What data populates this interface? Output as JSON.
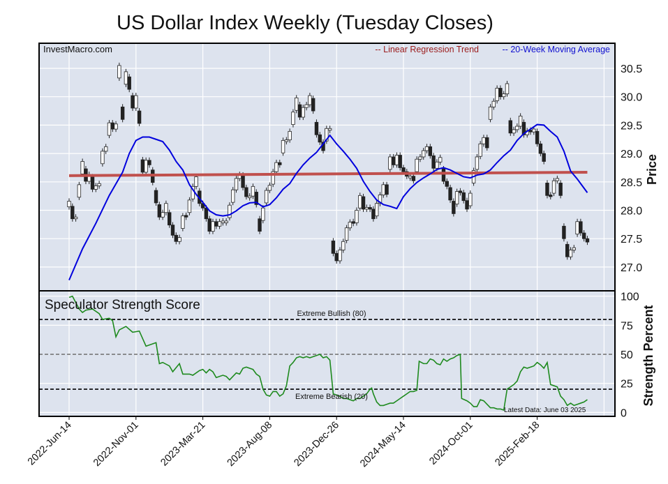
{
  "chart_data": [
    {
      "type": "candlestick",
      "title": "US Dollar Index Weekly (Tuesday Closes)",
      "watermark": "InvestMacro.com",
      "ylabel": "Price",
      "ylim": [
        26.6,
        30.9
      ],
      "yticks": [
        "27.0",
        "27.5",
        "28.0",
        "28.5",
        "29.0",
        "29.5",
        "30.0",
        "30.5"
      ],
      "xticks": [
        {
          "label": "2022-Jun-14",
          "week": 0
        },
        {
          "label": "2022-Nov-01",
          "week": 20
        },
        {
          "label": "2023-Mar-21",
          "week": 40
        },
        {
          "label": "2023-Aug-08",
          "week": 60
        },
        {
          "label": "2023-Dec-26",
          "week": 80
        },
        {
          "label": "2024-May-14",
          "week": 100
        },
        {
          "label": "2024-Oct-01",
          "week": 120
        },
        {
          "label": "2025-Feb-18",
          "week": 140
        }
      ],
      "legend": {
        "regression_label": "-- Linear Regression Trend",
        "ma_label": "-- 20-Week Moving Average",
        "placement": "top-right"
      },
      "colors": {
        "regression": "#c0504d",
        "ma": "#0000dd",
        "up": "#ffffff",
        "down": "#222222",
        "legend_regression": "#9b1c1c",
        "legend_ma": "#1010d0"
      },
      "closes": [
        28.16,
        27.85,
        27.88,
        28.45,
        28.86,
        28.51,
        28.63,
        28.37,
        28.43,
        28.47,
        29.04,
        29.12,
        29.54,
        29.43,
        29.52,
        30.55,
        29.6,
        30.44,
        30.13,
        29.8,
        30.02,
        29.53,
        28.67,
        28.88,
        28.8,
        28.49,
        28.13,
        27.88,
        27.96,
        28.12,
        27.74,
        27.56,
        27.45,
        27.52,
        27.9,
        27.88,
        28.18,
        28.42,
        28.59,
        28.12,
        28.04,
        27.85,
        27.63,
        27.8,
        27.72,
        27.8,
        27.81,
        27.81,
        28.09,
        28.36,
        28.56,
        28.63,
        28.4,
        28.24,
        28.25,
        28.42,
        28.1,
        27.63,
        28.04,
        28.35,
        28.44,
        28.68,
        28.84,
        28.8,
        29.23,
        29.24,
        29.39,
        29.73,
        29.98,
        29.64,
        29.81,
        29.86,
        30.02,
        29.75,
        29.33,
        29.2,
        29.05,
        29.44,
        29.44,
        27.24,
        27.11,
        27.3,
        27.45,
        27.69,
        27.79,
        27.77,
        28.0,
        28.26,
        28.02,
        28.05,
        28.02,
        27.85,
        28.12,
        28.27,
        28.45,
        28.28,
        28.94,
        28.8,
        28.97,
        28.75,
        28.68,
        28.6,
        28.6,
        28.52,
        28.9,
        28.94,
        29.05,
        29.12,
        28.96,
        28.74,
        28.85,
        28.93,
        28.51,
        28.42,
        28.18,
        27.94,
        28.33,
        28.31,
        28.17,
        28.02,
        28.3,
        28.7,
        28.94,
        29.17,
        29.28,
        29.1,
        29.82,
        29.92,
        30.15,
        30.0,
        30.05,
        30.23,
        29.36,
        29.42,
        29.48,
        29.66,
        29.33,
        29.4,
        29.38,
        29.43,
        29.17,
        29.0,
        28.86,
        28.26,
        28.24,
        28.52,
        28.56,
        28.26,
        27.5,
        27.18,
        27.3,
        27.34,
        27.8,
        27.6,
        27.5,
        27.44
      ],
      "moving_average": [
        [
          0,
          26.77
        ],
        [
          4,
          27.32
        ],
        [
          8,
          27.77
        ],
        [
          12,
          28.26
        ],
        [
          16,
          28.67
        ],
        [
          18,
          29.0
        ],
        [
          20,
          29.23
        ],
        [
          22,
          29.29
        ],
        [
          24,
          29.29
        ],
        [
          26,
          29.25
        ],
        [
          28,
          29.21
        ],
        [
          30,
          29.06
        ],
        [
          32,
          28.86
        ],
        [
          34,
          28.71
        ],
        [
          36,
          28.45
        ],
        [
          38,
          28.28
        ],
        [
          40,
          28.14
        ],
        [
          42,
          27.99
        ],
        [
          44,
          27.92
        ],
        [
          46,
          27.9
        ],
        [
          48,
          27.92
        ],
        [
          50,
          27.99
        ],
        [
          52,
          28.08
        ],
        [
          54,
          28.13
        ],
        [
          56,
          28.14
        ],
        [
          58,
          28.06
        ],
        [
          60,
          28.1
        ],
        [
          62,
          28.22
        ],
        [
          64,
          28.37
        ],
        [
          66,
          28.47
        ],
        [
          68,
          28.65
        ],
        [
          70,
          28.8
        ],
        [
          72,
          28.92
        ],
        [
          74,
          29.02
        ],
        [
          76,
          29.17
        ],
        [
          78,
          29.32
        ],
        [
          80,
          29.17
        ],
        [
          82,
          29.04
        ],
        [
          84,
          28.9
        ],
        [
          86,
          28.74
        ],
        [
          88,
          28.51
        ],
        [
          90,
          28.33
        ],
        [
          92,
          28.18
        ],
        [
          94,
          28.1
        ],
        [
          96,
          28.07
        ],
        [
          98,
          28.03
        ],
        [
          100,
          28.24
        ],
        [
          102,
          28.38
        ],
        [
          104,
          28.49
        ],
        [
          106,
          28.57
        ],
        [
          108,
          28.64
        ],
        [
          110,
          28.72
        ],
        [
          112,
          28.75
        ],
        [
          114,
          28.71
        ],
        [
          116,
          28.65
        ],
        [
          118,
          28.59
        ],
        [
          120,
          28.57
        ],
        [
          122,
          28.62
        ],
        [
          124,
          28.64
        ],
        [
          126,
          28.71
        ],
        [
          128,
          28.84
        ],
        [
          130,
          28.96
        ],
        [
          132,
          29.06
        ],
        [
          134,
          29.23
        ],
        [
          136,
          29.35
        ],
        [
          138,
          29.43
        ],
        [
          140,
          29.51
        ],
        [
          142,
          29.5
        ],
        [
          144,
          29.39
        ],
        [
          146,
          29.29
        ],
        [
          148,
          29.04
        ],
        [
          150,
          28.69
        ],
        [
          152,
          28.55
        ],
        [
          154,
          28.39
        ],
        [
          155,
          28.31
        ]
      ],
      "regression": [
        [
          0,
          28.61
        ],
        [
          155,
          28.67
        ]
      ]
    },
    {
      "type": "line",
      "title": "Speculator Strength Score",
      "ylabel": "Strength Percent",
      "ylim": [
        0,
        100
      ],
      "yticks": [
        "100",
        "75",
        "50",
        "25",
        "0"
      ],
      "thresholds": [
        {
          "value": 80,
          "label": "Extreme Bullish (80)"
        },
        {
          "value": 50,
          "label": ""
        },
        {
          "value": 20,
          "label": "Extreme Bearish (20)"
        }
      ],
      "annotation": "Latest Data: June 03 2025",
      "color": "#1e8a1e",
      "points": [
        [
          0,
          99
        ],
        [
          1,
          100
        ],
        [
          3,
          89
        ],
        [
          4,
          86
        ],
        [
          5,
          88
        ],
        [
          7,
          89
        ],
        [
          9,
          85
        ],
        [
          10,
          80
        ],
        [
          12,
          81
        ],
        [
          13,
          79
        ],
        [
          14,
          65
        ],
        [
          15,
          71
        ],
        [
          17,
          74
        ],
        [
          19,
          69
        ],
        [
          21,
          70
        ],
        [
          23,
          57
        ],
        [
          25,
          59
        ],
        [
          26,
          60
        ],
        [
          27,
          42
        ],
        [
          28,
          43
        ],
        [
          30,
          40
        ],
        [
          31,
          35
        ],
        [
          33,
          42
        ],
        [
          34,
          33
        ],
        [
          36,
          33
        ],
        [
          37,
          32
        ],
        [
          39,
          36
        ],
        [
          40,
          37
        ],
        [
          41,
          34
        ],
        [
          42,
          37
        ],
        [
          43,
          35
        ],
        [
          44,
          30
        ],
        [
          46,
          32
        ],
        [
          47,
          31
        ],
        [
          48,
          28
        ],
        [
          50,
          34
        ],
        [
          51,
          33
        ],
        [
          52,
          38
        ],
        [
          53,
          39
        ],
        [
          55,
          37
        ],
        [
          56,
          33
        ],
        [
          57,
          31
        ],
        [
          58,
          20
        ],
        [
          59,
          15
        ],
        [
          60,
          14
        ],
        [
          61,
          18
        ],
        [
          62,
          18
        ],
        [
          63,
          14
        ],
        [
          64,
          16
        ],
        [
          65,
          23
        ],
        [
          66,
          40
        ],
        [
          67,
          43
        ],
        [
          68,
          47
        ],
        [
          69,
          48
        ],
        [
          70,
          47
        ],
        [
          71,
          48
        ],
        [
          72,
          47
        ],
        [
          73,
          48
        ],
        [
          74,
          49
        ],
        [
          75,
          50
        ],
        [
          76,
          47
        ],
        [
          77,
          48
        ],
        [
          78,
          45
        ],
        [
          79,
          16
        ],
        [
          80,
          15
        ],
        [
          81,
          14
        ],
        [
          82,
          12
        ],
        [
          83,
          12
        ],
        [
          84,
          11
        ],
        [
          85,
          10
        ],
        [
          86,
          12
        ],
        [
          87,
          12
        ],
        [
          88,
          14
        ],
        [
          89,
          16
        ],
        [
          90,
          20
        ],
        [
          90.5,
          21
        ],
        [
          91,
          16
        ],
        [
          92,
          9
        ],
        [
          93,
          6
        ],
        [
          94,
          6
        ],
        [
          95,
          7
        ],
        [
          96,
          8
        ],
        [
          97,
          8
        ],
        [
          98,
          10
        ],
        [
          99,
          12
        ],
        [
          100,
          14
        ],
        [
          101,
          16
        ],
        [
          102,
          18
        ],
        [
          103,
          18
        ],
        [
          104,
          19
        ],
        [
          104.7,
          44
        ],
        [
          106,
          42
        ],
        [
          107,
          42
        ],
        [
          108,
          46
        ],
        [
          109,
          45
        ],
        [
          110,
          42
        ],
        [
          111,
          41
        ],
        [
          112,
          46
        ],
        [
          113,
          44
        ],
        [
          114,
          46
        ],
        [
          115,
          47
        ],
        [
          116,
          49
        ],
        [
          117,
          50
        ],
        [
          117.4,
          12
        ],
        [
          119,
          10
        ],
        [
          120,
          8
        ],
        [
          121,
          5
        ],
        [
          122,
          5
        ],
        [
          123,
          11
        ],
        [
          124,
          10
        ],
        [
          125,
          7
        ],
        [
          126,
          4
        ],
        [
          127,
          4
        ],
        [
          128,
          3
        ],
        [
          129,
          3
        ],
        [
          130,
          2
        ],
        [
          131,
          20
        ],
        [
          132,
          22
        ],
        [
          133,
          24
        ],
        [
          134,
          27
        ],
        [
          135,
          35
        ],
        [
          136,
          39
        ],
        [
          137,
          38
        ],
        [
          138,
          39
        ],
        [
          139,
          40
        ],
        [
          140,
          43
        ],
        [
          141,
          41
        ],
        [
          142,
          38
        ],
        [
          143,
          43
        ],
        [
          144,
          24
        ],
        [
          145,
          23
        ],
        [
          146,
          22
        ],
        [
          147,
          14
        ],
        [
          148,
          11
        ],
        [
          149,
          6
        ],
        [
          150,
          8
        ],
        [
          151,
          6
        ],
        [
          152,
          7
        ],
        [
          153,
          8
        ],
        [
          154,
          9
        ],
        [
          155,
          11
        ]
      ]
    }
  ]
}
